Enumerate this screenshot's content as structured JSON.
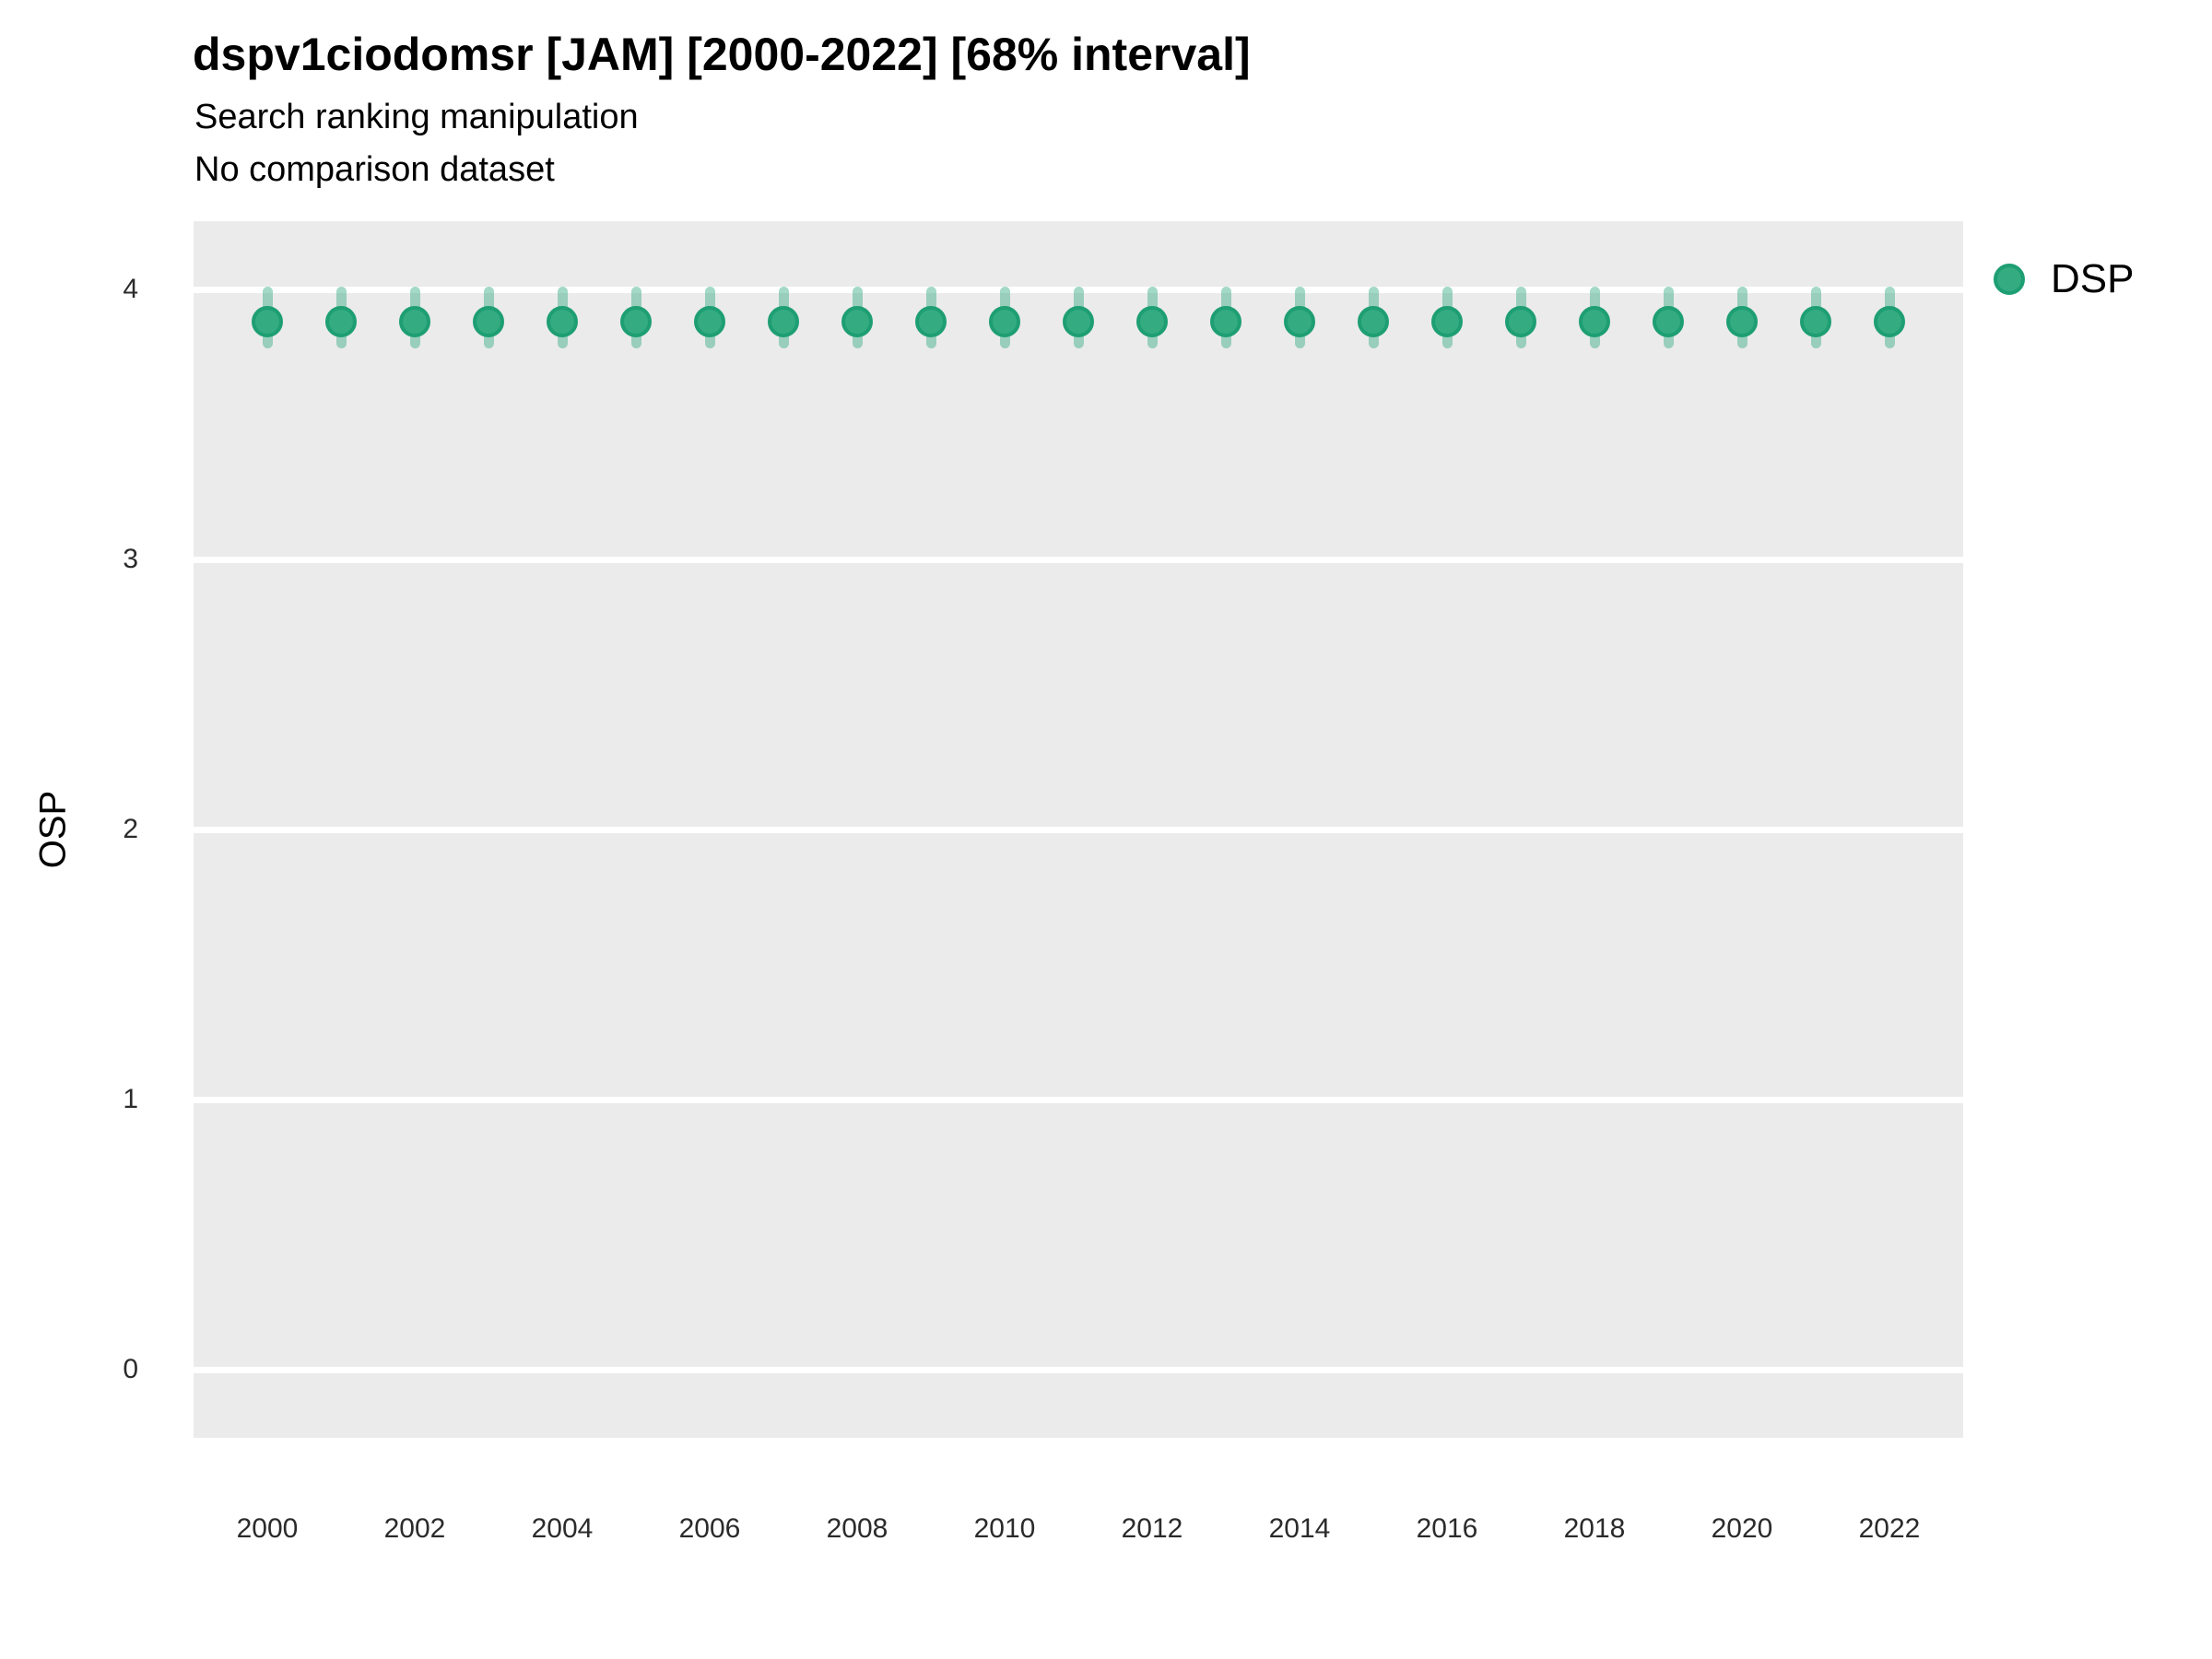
{
  "header": {
    "title": "dspv1ciodomsr [JAM] [2000-2022] [68% interval]",
    "subtitle_line1": "Search ranking manipulation",
    "subtitle_line2": "No comparison dataset"
  },
  "axes": {
    "y_label": "OSP",
    "y_ticks": [
      4,
      3,
      2,
      1,
      0
    ],
    "x_ticks": [
      2000,
      2002,
      2004,
      2006,
      2008,
      2010,
      2012,
      2014,
      2016,
      2018,
      2020,
      2022
    ]
  },
  "legend": {
    "label": "DSP",
    "dot_fill": "#34ab81",
    "dot_stroke": "#1e9e73"
  },
  "colors": {
    "panel_bg": "#ebebeb",
    "gridline": "#ffffff",
    "point_fill": "#34ab81",
    "point_stroke": "#1e9e73",
    "interval_fill": "rgba(52, 171, 129, 0.45)",
    "tick_text": "#2b2b2b",
    "title_text": "#000000"
  },
  "chart_data": {
    "type": "scatter",
    "subtype": "pointrange",
    "title": "dspv1ciodomsr [JAM] [2000-2022] [68% interval]",
    "subtitle": [
      "Search ranking manipulation",
      "No comparison dataset"
    ],
    "xlabel": "",
    "ylabel": "OSP",
    "interval_label": "68% interval",
    "xlim": [
      1999,
      2023
    ],
    "ylim": [
      -0.25,
      4.27
    ],
    "x_tick_step": 2,
    "grid": "major-horizontal-only",
    "legend_position": "right-top",
    "series": [
      {
        "name": "DSP",
        "x": [
          2000,
          2001,
          2002,
          2003,
          2004,
          2005,
          2006,
          2007,
          2008,
          2009,
          2010,
          2011,
          2012,
          2013,
          2014,
          2015,
          2016,
          2017,
          2018,
          2019,
          2020,
          2021,
          2022
        ],
        "y": [
          3.88,
          3.88,
          3.88,
          3.88,
          3.88,
          3.88,
          3.88,
          3.88,
          3.88,
          3.88,
          3.88,
          3.88,
          3.88,
          3.88,
          3.88,
          3.88,
          3.88,
          3.88,
          3.88,
          3.88,
          3.88,
          3.88,
          3.88
        ],
        "y_lo": [
          3.78,
          3.78,
          3.78,
          3.78,
          3.78,
          3.78,
          3.78,
          3.78,
          3.78,
          3.78,
          3.78,
          3.78,
          3.78,
          3.78,
          3.78,
          3.78,
          3.78,
          3.78,
          3.78,
          3.78,
          3.78,
          3.78,
          3.78
        ],
        "y_hi": [
          4.01,
          4.01,
          4.01,
          4.01,
          4.01,
          4.01,
          4.01,
          4.01,
          4.01,
          4.01,
          4.01,
          4.01,
          4.01,
          4.01,
          4.01,
          4.01,
          4.01,
          4.01,
          4.01,
          4.01,
          4.01,
          4.01,
          4.01
        ]
      }
    ]
  }
}
